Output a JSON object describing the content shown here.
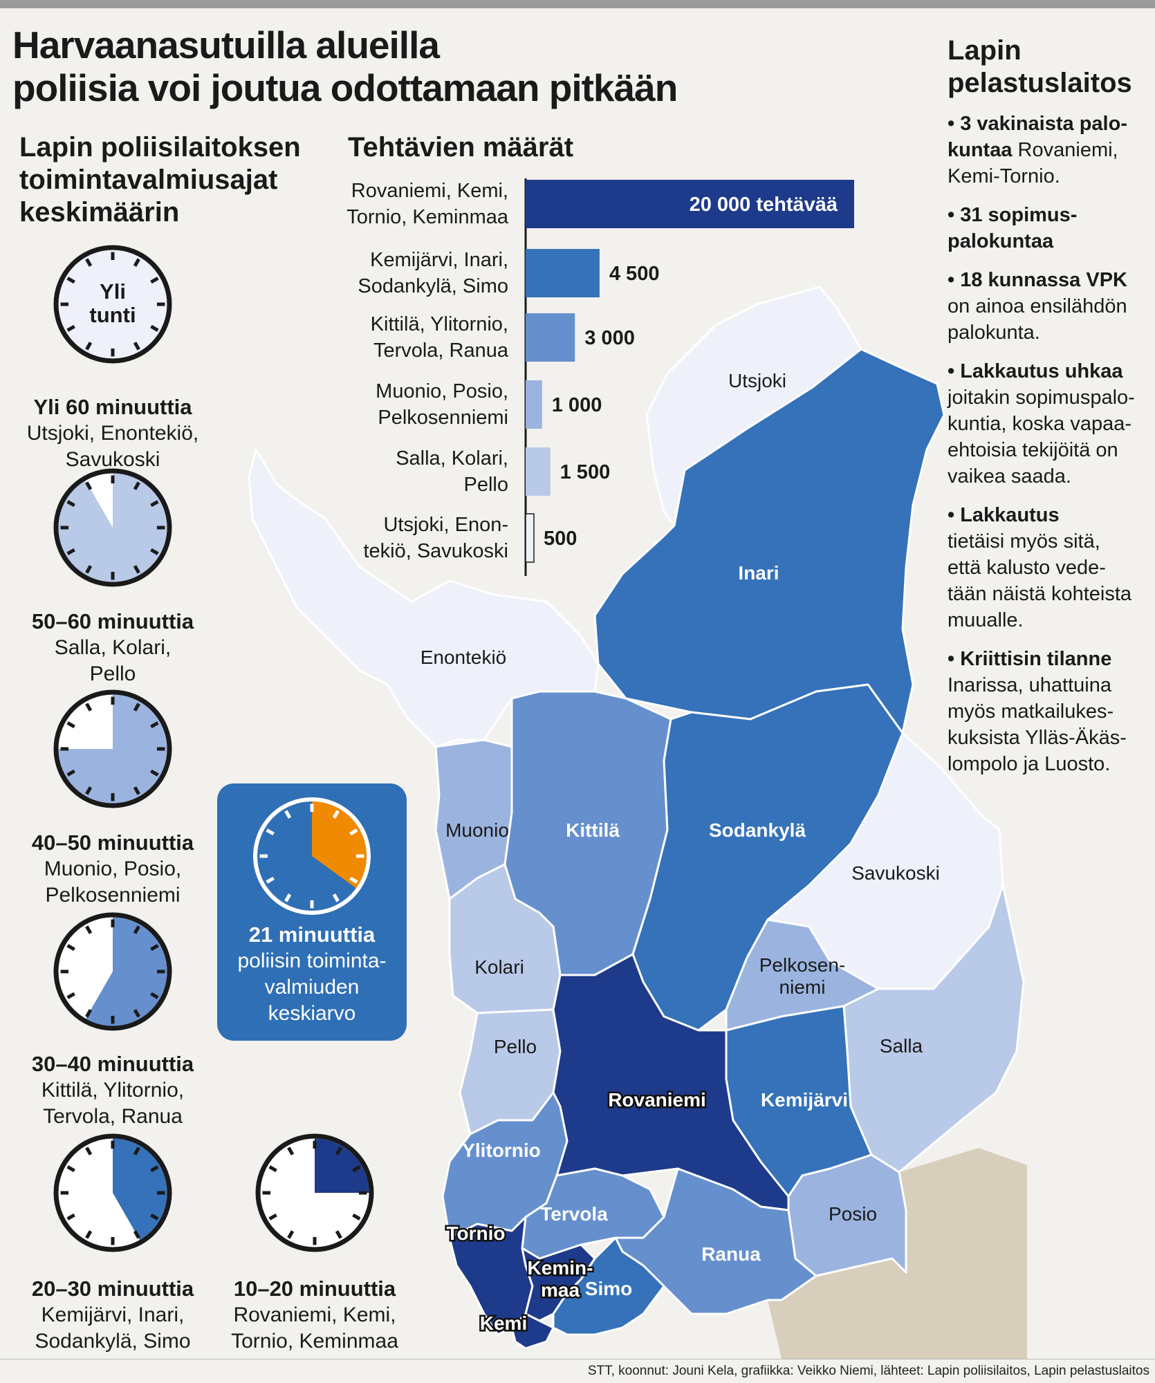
{
  "title_line1": "Harvaanasutuilla alueilla",
  "title_line2": "poliisia voi joutua odottamaan pitkään",
  "left_heading": {
    "line1": "Lapin poliisilaitoksen",
    "line2": "toimintavalmiusajat",
    "line3": "keskimäärin"
  },
  "clocks": [
    {
      "time": "Yli 60 minuuttia",
      "places": [
        "Utsjoki, Enontekiö,",
        "Savukoski"
      ],
      "face_text": [
        "Yli",
        "tunti"
      ],
      "fill_fraction": 0,
      "color": "#eef1f9"
    },
    {
      "time": "50–60 minuuttia",
      "places": [
        "Salla, Kolari,",
        "Pello"
      ],
      "fill_fraction": 0.917,
      "color": "#b9c9e8"
    },
    {
      "time": "40–50 minuuttia",
      "places": [
        "Muonio, Posio,",
        "Pelkosenniemi"
      ],
      "fill_fraction": 0.75,
      "color": "#9bb4df"
    },
    {
      "time": "30–40 minuuttia",
      "places": [
        "Kittilä, Ylitornio,",
        "Tervola, Ranua"
      ],
      "fill_fraction": 0.583,
      "color": "#6690cd"
    },
    {
      "time": "20–30 minuuttia",
      "places": [
        "Kemijärvi, Inari,",
        "Sodankylä, Simo"
      ],
      "fill_fraction": 0.417,
      "color": "#3572b9"
    },
    {
      "time": "10–20 minuuttia",
      "places": [
        "Rovaniemi, Kemi,",
        "Tornio, Keminmaa"
      ],
      "fill_fraction": 0.25,
      "color": "#1e3a8a"
    }
  ],
  "average": {
    "value_label": "21 minuuttia",
    "desc": [
      "poliisin toiminta-",
      "valmiuden",
      "keskiarvo"
    ],
    "fill_fraction": 0.35,
    "box_color": "#2f6fb5",
    "wedge_color": "#f08a00"
  },
  "bars_heading": "Tehtävien määrät",
  "chart_data": {
    "type": "bar",
    "title": "Tehtävien määrät",
    "categories": [
      [
        "Rovaniemi, Kemi,",
        "Tornio, Keminmaa"
      ],
      [
        "Kemijärvi, Inari,",
        "Sodankylä, Simo"
      ],
      [
        "Kittilä, Ylitornio,",
        "Tervola, Ranua"
      ],
      [
        "Muonio, Posio,",
        "Pelkosenniemi"
      ],
      [
        "Salla, Kolari,",
        "Pello"
      ],
      [
        "Utsjoki, Enon-",
        "tekiö, Savukoski"
      ]
    ],
    "values": [
      20000,
      4500,
      3000,
      1000,
      1500,
      500
    ],
    "value_labels": [
      "20 000 tehtävää",
      "4 500",
      "3 000",
      "1 000",
      "1 500",
      "500"
    ],
    "colors": [
      "#1e3a8a",
      "#3572b9",
      "#6690cd",
      "#9bb4df",
      "#b9c9e8",
      "#eef1f9"
    ],
    "orientation": "horizontal",
    "xlim": [
      0,
      20000
    ]
  },
  "map": {
    "regions": [
      {
        "name": "Utsjoki",
        "color": "#eef1f9",
        "label_dark": false
      },
      {
        "name": "Inari",
        "color": "#3572b9",
        "label_dark": false
      },
      {
        "name": "Enontekiö",
        "color": "#eef1f9",
        "label_dark": false
      },
      {
        "name": "Muonio",
        "color": "#9bb4df",
        "label_dark": false
      },
      {
        "name": "Kittilä",
        "color": "#6690cd",
        "label_dark": false
      },
      {
        "name": "Sodankylä",
        "color": "#3572b9",
        "label_dark": false
      },
      {
        "name": "Savukoski",
        "color": "#eef1f9",
        "label_dark": false
      },
      {
        "name": "Kolari",
        "color": "#b9c9e8",
        "label_dark": false
      },
      {
        "name": "Pelkosen-\nniemi",
        "color": "#9bb4df",
        "label_dark": false
      },
      {
        "name": "Pello",
        "color": "#b9c9e8",
        "label_dark": false
      },
      {
        "name": "Salla",
        "color": "#b9c9e8",
        "label_dark": false
      },
      {
        "name": "Rovaniemi",
        "color": "#1e3a8a",
        "label_dark": false
      },
      {
        "name": "Kemijärvi",
        "color": "#3572b9",
        "label_dark": false
      },
      {
        "name": "Ylitornio",
        "color": "#6690cd",
        "label_dark": false
      },
      {
        "name": "Posio",
        "color": "#9bb4df",
        "label_dark": false
      },
      {
        "name": "Tervola",
        "color": "#6690cd",
        "label_dark": false
      },
      {
        "name": "Tornio",
        "color": "#1e3a8a",
        "label_dark": false
      },
      {
        "name": "Ranua",
        "color": "#6690cd",
        "label_dark": false
      },
      {
        "name": "Kemin-\nmaa",
        "color": "#1e3a8a",
        "label_dark": false
      },
      {
        "name": "Simo",
        "color": "#3572b9",
        "label_dark": false
      },
      {
        "name": "Kemi",
        "color": "#1e3a8a",
        "label_dark": false
      }
    ],
    "outside_color": "#d7cfbb"
  },
  "right_heading": {
    "line1": "Lapin",
    "line2": "pelastuslaitos"
  },
  "bullets": [
    {
      "bold": "3 vakinaista palo-\nkuntaa",
      "text": " Rovaniemi,\nKemi-Tornio."
    },
    {
      "bold": "31 sopimus-\npalokuntaa",
      "text": ""
    },
    {
      "bold": "18 kunnassa VPK",
      "text": "\non ainoa ensilähdön\npalokunta."
    },
    {
      "bold": "Lakkautus uhkaa",
      "text": "\njoitakin sopimuspalo-\nkuntia, koska vapaa-\nehtoisia tekijöitä on\nvaikea saada."
    },
    {
      "bold": "Lakkautus",
      "text": "\ntietäisi myös sitä,\nettä kalusto vede-\ntään näistä kohteista\nmuualle."
    },
    {
      "bold": "Kriittisin tilanne",
      "text": "\nInarissa, uhattuina\nmyös matkailukes-\nkuksista Ylläs-Äkäs-\nlompolo ja Luosto."
    }
  ],
  "footer": "STT, koonnut: Jouni Kela, grafiikka: Veikko Niemi, lähteet: Lapin poliisilaitos, Lapin pelastuslaitos"
}
